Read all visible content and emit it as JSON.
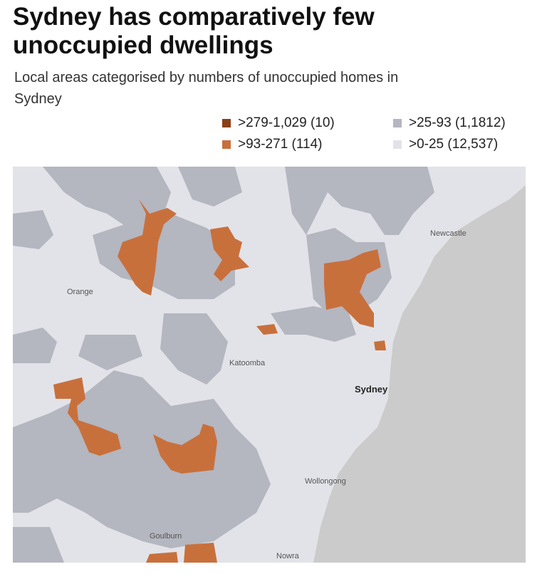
{
  "header": {
    "title": "Sydney has comparatively few unoccupied dwellings",
    "subtitle": "Local areas categorised by numbers of unoccupied homes in Sydney"
  },
  "legend": [
    {
      "label": ">279-1,029 (10)",
      "color": "#8a3f17"
    },
    {
      "label": ">93-271 (114)",
      "color": "#c8703c"
    },
    {
      "label": ">25-93 (1,1812)",
      "color": "#b4b6c0"
    },
    {
      "label": ">0-25 (12,537)",
      "color": "#e2e3e8"
    }
  ],
  "map": {
    "places": [
      "Newcastle",
      "Orange",
      "Katoomba",
      "Sydney",
      "Wollongong",
      "Goulburn",
      "Nowra"
    ]
  }
}
